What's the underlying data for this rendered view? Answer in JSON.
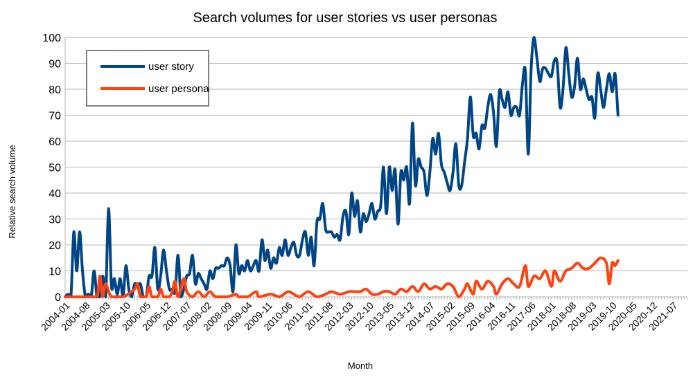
{
  "chart_data": {
    "type": "line",
    "title": "Search volumes for user stories vs user personas",
    "xlabel": "Month",
    "ylabel": "Relative search volume",
    "ylim": [
      0,
      100
    ],
    "yticks": [
      0,
      10,
      20,
      30,
      40,
      50,
      60,
      70,
      80,
      90,
      100
    ],
    "xlim": [
      "2004-01",
      "2021-12"
    ],
    "xtick_labels": [
      "2004-01",
      "2004-08",
      "2005-03",
      "2005-10",
      "2006-05",
      "2006-12",
      "2007-07",
      "2008-02",
      "2008-09",
      "2009-04",
      "2009-11",
      "2010-06",
      "2011-01",
      "2011-08",
      "2012-03",
      "2012-10",
      "2013-05",
      "2013-12",
      "2014-07",
      "2015-02",
      "2015-09",
      "2016-04",
      "2016-11",
      "2017-06",
      "2018-01",
      "2018-08",
      "2019-03",
      "2019-10",
      "2020-05",
      "2020-12",
      "2021-07"
    ],
    "grid": "horizontal",
    "legend_position": "top-left",
    "series": [
      {
        "name": "user story",
        "color": "#004586",
        "points": [
          [
            "2004-01",
            0
          ],
          [
            "2004-02",
            1
          ],
          [
            "2004-03",
            0
          ],
          [
            "2004-04",
            25
          ],
          [
            "2004-05",
            10
          ],
          [
            "2004-06",
            25
          ],
          [
            "2004-07",
            10
          ],
          [
            "2004-08",
            0
          ],
          [
            "2004-09",
            1
          ],
          [
            "2004-10",
            0
          ],
          [
            "2004-11",
            10
          ],
          [
            "2004-12",
            0
          ],
          [
            "2005-01",
            0
          ],
          [
            "2005-02",
            8
          ],
          [
            "2005-03",
            0
          ],
          [
            "2005-04",
            34
          ],
          [
            "2005-05",
            4
          ],
          [
            "2005-06",
            7
          ],
          [
            "2005-07",
            1
          ],
          [
            "2005-08",
            7
          ],
          [
            "2005-09",
            0
          ],
          [
            "2005-10",
            12
          ],
          [
            "2005-11",
            3
          ],
          [
            "2005-12",
            0
          ],
          [
            "2006-01",
            5
          ],
          [
            "2006-02",
            4
          ],
          [
            "2006-03",
            5
          ],
          [
            "2006-04",
            0
          ],
          [
            "2006-05",
            0
          ],
          [
            "2006-06",
            8
          ],
          [
            "2006-07",
            8
          ],
          [
            "2006-08",
            19
          ],
          [
            "2006-09",
            3
          ],
          [
            "2006-10",
            8
          ],
          [
            "2006-11",
            18
          ],
          [
            "2006-12",
            10
          ],
          [
            "2007-01",
            3
          ],
          [
            "2007-02",
            3
          ],
          [
            "2007-03",
            2
          ],
          [
            "2007-04",
            16
          ],
          [
            "2007-05",
            0
          ],
          [
            "2007-06",
            3
          ],
          [
            "2007-07",
            8
          ],
          [
            "2007-08",
            9
          ],
          [
            "2007-09",
            16
          ],
          [
            "2007-10",
            5
          ],
          [
            "2007-11",
            9
          ],
          [
            "2007-12",
            7
          ],
          [
            "2008-01",
            5
          ],
          [
            "2008-02",
            3
          ],
          [
            "2008-03",
            10
          ],
          [
            "2008-04",
            7
          ],
          [
            "2008-05",
            11
          ],
          [
            "2008-06",
            11
          ],
          [
            "2008-07",
            12
          ],
          [
            "2008-08",
            12
          ],
          [
            "2008-09",
            15
          ],
          [
            "2008-10",
            12
          ],
          [
            "2008-11",
            2
          ],
          [
            "2008-12",
            20
          ],
          [
            "2009-01",
            9
          ],
          [
            "2009-02",
            12
          ],
          [
            "2009-03",
            10
          ],
          [
            "2009-04",
            14
          ],
          [
            "2009-05",
            10
          ],
          [
            "2009-06",
            12
          ],
          [
            "2009-07",
            14
          ],
          [
            "2009-08",
            10
          ],
          [
            "2009-09",
            22
          ],
          [
            "2009-10",
            14
          ],
          [
            "2009-11",
            18
          ],
          [
            "2009-12",
            11
          ],
          [
            "2010-01",
            15
          ],
          [
            "2010-02",
            13
          ],
          [
            "2010-03",
            19
          ],
          [
            "2010-04",
            16
          ],
          [
            "2010-05",
            22
          ],
          [
            "2010-06",
            16
          ],
          [
            "2010-07",
            19
          ],
          [
            "2010-08",
            21
          ],
          [
            "2010-09",
            16
          ],
          [
            "2010-10",
            16
          ],
          [
            "2010-11",
            22
          ],
          [
            "2010-12",
            25
          ],
          [
            "2011-01",
            16
          ],
          [
            "2011-02",
            23
          ],
          [
            "2011-03",
            12
          ],
          [
            "2011-04",
            29
          ],
          [
            "2011-05",
            30
          ],
          [
            "2011-06",
            36
          ],
          [
            "2011-07",
            26
          ],
          [
            "2011-08",
            25
          ],
          [
            "2011-09",
            25
          ],
          [
            "2011-10",
            23
          ],
          [
            "2011-11",
            24
          ],
          [
            "2011-12",
            22
          ],
          [
            "2012-01",
            31
          ],
          [
            "2012-02",
            33
          ],
          [
            "2012-03",
            24
          ],
          [
            "2012-04",
            40
          ],
          [
            "2012-05",
            31
          ],
          [
            "2012-06",
            37
          ],
          [
            "2012-07",
            25
          ],
          [
            "2012-08",
            32
          ],
          [
            "2012-09",
            29
          ],
          [
            "2012-10",
            32
          ],
          [
            "2012-11",
            36
          ],
          [
            "2012-12",
            30
          ],
          [
            "2013-01",
            33
          ],
          [
            "2013-02",
            35
          ],
          [
            "2013-03",
            50
          ],
          [
            "2013-04",
            32
          ],
          [
            "2013-05",
            50
          ],
          [
            "2013-06",
            41
          ],
          [
            "2013-07",
            49
          ],
          [
            "2013-08",
            28
          ],
          [
            "2013-09",
            48
          ],
          [
            "2013-10",
            45
          ],
          [
            "2013-11",
            50
          ],
          [
            "2013-12",
            36
          ],
          [
            "2014-01",
            67
          ],
          [
            "2014-02",
            43
          ],
          [
            "2014-03",
            53
          ],
          [
            "2014-04",
            50
          ],
          [
            "2014-05",
            48
          ],
          [
            "2014-06",
            39
          ],
          [
            "2014-07",
            48
          ],
          [
            "2014-08",
            61
          ],
          [
            "2014-09",
            55
          ],
          [
            "2014-10",
            63
          ],
          [
            "2014-11",
            51
          ],
          [
            "2014-12",
            48
          ],
          [
            "2015-01",
            44
          ],
          [
            "2015-02",
            41
          ],
          [
            "2015-03",
            48
          ],
          [
            "2015-04",
            59
          ],
          [
            "2015-05",
            43
          ],
          [
            "2015-06",
            43
          ],
          [
            "2015-07",
            52
          ],
          [
            "2015-08",
            61
          ],
          [
            "2015-09",
            77
          ],
          [
            "2015-10",
            62
          ],
          [
            "2015-11",
            63
          ],
          [
            "2015-12",
            57
          ],
          [
            "2016-01",
            66
          ],
          [
            "2016-02",
            65
          ],
          [
            "2016-03",
            73
          ],
          [
            "2016-04",
            78
          ],
          [
            "2016-05",
            71
          ],
          [
            "2016-06",
            58
          ],
          [
            "2016-07",
            79
          ],
          [
            "2016-08",
            76
          ],
          [
            "2016-09",
            73
          ],
          [
            "2016-10",
            79
          ],
          [
            "2016-11",
            70
          ],
          [
            "2016-12",
            73
          ],
          [
            "2017-01",
            73
          ],
          [
            "2017-02",
            70
          ],
          [
            "2017-03",
            82
          ],
          [
            "2017-04",
            87
          ],
          [
            "2017-05",
            55
          ],
          [
            "2017-06",
            88
          ],
          [
            "2017-07",
            100
          ],
          [
            "2017-08",
            92
          ],
          [
            "2017-09",
            83
          ],
          [
            "2017-10",
            88
          ],
          [
            "2017-11",
            88
          ],
          [
            "2017-12",
            86
          ],
          [
            "2018-01",
            85
          ],
          [
            "2018-02",
            91
          ],
          [
            "2018-03",
            90
          ],
          [
            "2018-04",
            73
          ],
          [
            "2018-05",
            80
          ],
          [
            "2018-06",
            96
          ],
          [
            "2018-07",
            86
          ],
          [
            "2018-08",
            77
          ],
          [
            "2018-09",
            81
          ],
          [
            "2018-10",
            92
          ],
          [
            "2018-11",
            80
          ],
          [
            "2018-12",
            84
          ],
          [
            "2019-01",
            80
          ],
          [
            "2019-02",
            76
          ],
          [
            "2019-03",
            77
          ],
          [
            "2019-04",
            69
          ],
          [
            "2019-05",
            86
          ],
          [
            "2019-06",
            80
          ],
          [
            "2019-07",
            73
          ],
          [
            "2019-08",
            80
          ],
          [
            "2019-09",
            86
          ],
          [
            "2019-10",
            79
          ],
          [
            "2019-11",
            86
          ],
          [
            "2019-12",
            70
          ]
        ]
      },
      {
        "name": "user persona",
        "color": "#ff420e",
        "points": [
          [
            "2004-01",
            0
          ],
          [
            "2004-05",
            0
          ],
          [
            "2004-09",
            0
          ],
          [
            "2004-12",
            0
          ],
          [
            "2005-01",
            8
          ],
          [
            "2005-02",
            0
          ],
          [
            "2005-03",
            5
          ],
          [
            "2005-05",
            0
          ],
          [
            "2005-09",
            0
          ],
          [
            "2006-01",
            3
          ],
          [
            "2006-02",
            5
          ],
          [
            "2006-03",
            0
          ],
          [
            "2006-05",
            0
          ],
          [
            "2006-06",
            4
          ],
          [
            "2006-07",
            0
          ],
          [
            "2006-09",
            0
          ],
          [
            "2006-10",
            3
          ],
          [
            "2006-11",
            0
          ],
          [
            "2007-01",
            0
          ],
          [
            "2007-02",
            2
          ],
          [
            "2007-03",
            6
          ],
          [
            "2007-04",
            0
          ],
          [
            "2007-06",
            7
          ],
          [
            "2007-07",
            2
          ],
          [
            "2007-09",
            0
          ],
          [
            "2007-11",
            2
          ],
          [
            "2008-01",
            0
          ],
          [
            "2008-03",
            2
          ],
          [
            "2008-05",
            0
          ],
          [
            "2008-09",
            0
          ],
          [
            "2008-12",
            1
          ],
          [
            "2009-01",
            0
          ],
          [
            "2009-04",
            0
          ],
          [
            "2009-07",
            2
          ],
          [
            "2009-08",
            0
          ],
          [
            "2009-12",
            1
          ],
          [
            "2010-03",
            0
          ],
          [
            "2010-06",
            2
          ],
          [
            "2010-08",
            1
          ],
          [
            "2010-10",
            0
          ],
          [
            "2011-01",
            2
          ],
          [
            "2011-04",
            0
          ],
          [
            "2011-07",
            1
          ],
          [
            "2011-09",
            2
          ],
          [
            "2011-12",
            1
          ],
          [
            "2012-03",
            2
          ],
          [
            "2012-05",
            2
          ],
          [
            "2012-07",
            2
          ],
          [
            "2012-09",
            3
          ],
          [
            "2012-11",
            1
          ],
          [
            "2013-01",
            1
          ],
          [
            "2013-03",
            2
          ],
          [
            "2013-05",
            2
          ],
          [
            "2013-07",
            1
          ],
          [
            "2013-09",
            3
          ],
          [
            "2013-11",
            2
          ],
          [
            "2014-01",
            4
          ],
          [
            "2014-03",
            2
          ],
          [
            "2014-05",
            5
          ],
          [
            "2014-07",
            3
          ],
          [
            "2014-09",
            4
          ],
          [
            "2014-11",
            3
          ],
          [
            "2015-01",
            5
          ],
          [
            "2015-03",
            4
          ],
          [
            "2015-05",
            0
          ],
          [
            "2015-07",
            3
          ],
          [
            "2015-08",
            5
          ],
          [
            "2015-10",
            1
          ],
          [
            "2015-11",
            6
          ],
          [
            "2016-01",
            3
          ],
          [
            "2016-03",
            6
          ],
          [
            "2016-05",
            4
          ],
          [
            "2016-06",
            1
          ],
          [
            "2016-08",
            5
          ],
          [
            "2016-10",
            7
          ],
          [
            "2016-12",
            5
          ],
          [
            "2017-02",
            4
          ],
          [
            "2017-04",
            12
          ],
          [
            "2017-05",
            4
          ],
          [
            "2017-07",
            8
          ],
          [
            "2017-09",
            7
          ],
          [
            "2017-11",
            10
          ],
          [
            "2018-01",
            4
          ],
          [
            "2018-02",
            10
          ],
          [
            "2018-04",
            6
          ],
          [
            "2018-06",
            10
          ],
          [
            "2018-08",
            11
          ],
          [
            "2018-10",
            13
          ],
          [
            "2018-12",
            11
          ],
          [
            "2019-02",
            11
          ],
          [
            "2019-04",
            13
          ],
          [
            "2019-06",
            15
          ],
          [
            "2019-08",
            13
          ],
          [
            "2019-09",
            5
          ],
          [
            "2019-10",
            13
          ],
          [
            "2019-11",
            12
          ],
          [
            "2019-12",
            14
          ]
        ]
      }
    ]
  }
}
